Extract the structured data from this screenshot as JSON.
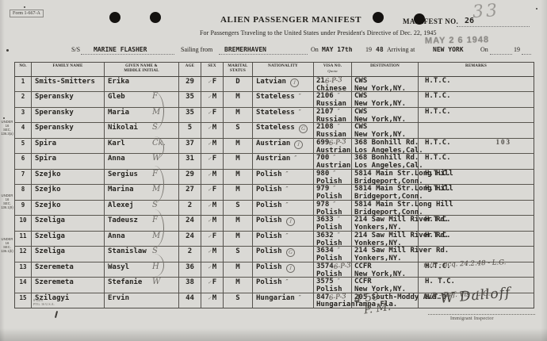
{
  "form": {
    "form_no": "Form 1-667-A",
    "title": "ALIEN PASSENGER MANIFEST",
    "subtitle": "For Passengers Traveling to the United States under President's Directive of Dec. 22, 1945",
    "manifest_no_label": "MANIFEST NO.",
    "manifest_no": "26",
    "pencil_page_no": "33",
    "date_stamp": "MAY 2 6 1948",
    "ss_label": "S/S",
    "ship_name": "MARINE FLASHER",
    "sailing_from_label": "Sailing from",
    "port_of_sailing": "BREMERHAVEN",
    "on_label": "On",
    "sailing_date": "MAY 17th",
    "year_prefix": "19",
    "sailing_year": "48",
    "arriving_label": "Arriving at",
    "arrival_port": "NEW YORK",
    "on2_label": "On",
    "year2_prefix": "19"
  },
  "table": {
    "headers": [
      "NO.",
      "FAMILY NAME",
      "GIVEN NAME &\nMIDDLE INITIAL",
      "AGE",
      "SEX",
      "MARITAL\nSTATUS",
      "NATIONALITY",
      "VISA NO.",
      "DESTINATION",
      "REMARKS"
    ],
    "visa_quota_sub": "Quota",
    "rows": [
      {
        "no": "1",
        "family": "Smits-Smitters",
        "given": "Erika",
        "hw": "",
        "age": "29",
        "sex": "F",
        "marital": "D",
        "nat": "Latvian",
        "nat_circle": "1",
        "nat_ditto": "",
        "visa": "21",
        "visa_hw": "6-P-3",
        "quota": "Chinese",
        "dest1": "CWS",
        "dest2": "New York,NY.",
        "rmk_hw": "",
        "rmk": "H.T.C.",
        "stamp": ""
      },
      {
        "no": "2",
        "family": "Speransky",
        "given": "Gleb",
        "hw": "F",
        "age": "35",
        "sex": "M",
        "marital": "M",
        "nat": "Stateless",
        "nat_circle": "",
        "nat_ditto": "″",
        "visa": "2106",
        "visa_hw": "″",
        "quota": "Russian",
        "dest1": "CWS",
        "dest2": "New York,NY.",
        "rmk_hw": "",
        "rmk": "H.T.C.",
        "stamp": ""
      },
      {
        "no": "3",
        "family": "Speransky",
        "given": "Maria",
        "hw": "M",
        "age": "35",
        "sex": "F",
        "marital": "M",
        "nat": "Stateless",
        "nat_circle": "",
        "nat_ditto": "″",
        "visa": "2107",
        "visa_hw": "″",
        "quota": "Russian",
        "dest1": "CWS",
        "dest2": "New York,NY.",
        "rmk_hw": "",
        "rmk": "H.T.C.",
        "stamp": ""
      },
      {
        "no": "4",
        "family": "Speransky",
        "given": "Nikolai",
        "hw": "S",
        "age": "5",
        "sex": "M",
        "marital": "S",
        "nat": "Stateless",
        "nat_circle": "G",
        "nat_ditto": "",
        "visa": "2108",
        "visa_hw": "″",
        "quota": "Russian",
        "dest1": "CWS",
        "dest2": "New York,NY.",
        "rmk_hw": "",
        "rmk": "",
        "stamp": ""
      },
      {
        "no": "5",
        "family": "Spira",
        "given": "Karl",
        "hw": "Ck.",
        "age": "37",
        "sex": "M",
        "marital": "M",
        "nat": "Austrian",
        "nat_circle": "1",
        "nat_ditto": "",
        "visa": "699",
        "visa_hw": "6-P-3",
        "quota": "Austrian",
        "dest1": "368 Bonhill Rd.",
        "dest2": "Los Angeles,Cal.",
        "rmk_hw": "",
        "rmk": "H.T.C.",
        "stamp": "103"
      },
      {
        "no": "6",
        "family": "Spira",
        "given": "Anna",
        "hw": "W",
        "age": "31",
        "sex": "F",
        "marital": "M",
        "nat": "Austrian",
        "nat_circle": "",
        "nat_ditto": "″",
        "visa": "700",
        "visa_hw": "″",
        "quota": "Austrian",
        "dest1": "368 Bonhill Rd.",
        "dest2": "Los Angeles,Cal.",
        "rmk_hw": "",
        "rmk": "H.T.C.",
        "stamp": ""
      },
      {
        "no": "7",
        "family": "Szejko",
        "given": "Sergius",
        "hw": "F",
        "age": "29",
        "sex": "M",
        "marital": "M",
        "nat": "Polish",
        "nat_circle": "",
        "nat_ditto": "″",
        "visa": "980",
        "visa_hw": "″",
        "quota": "Polish",
        "dest1": "5814 Main Str.Long Hill",
        "dest2": "Bridgeport,Conn.",
        "rmk_hw": "",
        "rmk": "H.T.C.",
        "stamp": ""
      },
      {
        "no": "8",
        "family": "Szejko",
        "given": "Marina",
        "hw": "M",
        "age": "27",
        "sex": "F",
        "marital": "M",
        "nat": "Polish",
        "nat_circle": "",
        "nat_ditto": "″",
        "visa": "979",
        "visa_hw": "″",
        "quota": "Polish",
        "dest1": "5814 Main Str.Long Hill",
        "dest2": "Bridgeport,Conn.",
        "rmk_hw": "",
        "rmk": "H.T.C.",
        "stamp": ""
      },
      {
        "no": "9",
        "family": "Szejko",
        "given": "Alexej",
        "hw": "S",
        "age": "2",
        "sex": "M",
        "marital": "S",
        "nat": "Polish",
        "nat_circle": "",
        "nat_ditto": "″",
        "visa": "978",
        "visa_hw": "″",
        "quota": "Polish",
        "dest1": "5814 Main Str.Long Hill",
        "dest2": "Bridgeport,Conn.",
        "rmk_hw": "",
        "rmk": "",
        "stamp": ""
      },
      {
        "no": "10",
        "family": "Szeliga",
        "given": "Tadeusz",
        "hw": "F",
        "age": "24",
        "sex": "M",
        "marital": "M",
        "nat": "Polish",
        "nat_circle": "1",
        "nat_ditto": "",
        "visa": "3633",
        "visa_hw": "″",
        "quota": "Polish",
        "dest1": "214 Saw Mill River Rd.",
        "dest2": "Yonkers,NY.",
        "rmk_hw": "",
        "rmk": "H.T.C.",
        "stamp": ""
      },
      {
        "no": "11",
        "family": "Szeliga",
        "given": "Anna",
        "hw": "M",
        "age": "24",
        "sex": "F",
        "marital": "M",
        "nat": "Polish",
        "nat_circle": "",
        "nat_ditto": "″",
        "visa": "3632",
        "visa_hw": "″",
        "quota": "Polish",
        "dest1": "214 Saw Mill River Rd.",
        "dest2": "Yonkers,NY.",
        "rmk_hw": "",
        "rmk": "H.T.C.",
        "stamp": ""
      },
      {
        "no": "12",
        "family": "Szeliga",
        "given": "Stanislaw",
        "hw": "S",
        "age": "2",
        "sex": "M",
        "marital": "S",
        "nat": "Polish",
        "nat_circle": "G",
        "nat_ditto": "",
        "visa": "3634",
        "visa_hw": "″",
        "quota": "Polish",
        "dest1": "214 Saw Mill River Rd.",
        "dest2": "Yonkers,NY.",
        "rmk_hw": "",
        "rmk": "",
        "stamp": ""
      },
      {
        "no": "13",
        "family": "Szeremeta",
        "given": "Wasyl",
        "hw": "H",
        "age": "36",
        "sex": "M",
        "marital": "M",
        "nat": "Polish",
        "nat_circle": "1",
        "nat_ditto": "",
        "visa": "3574",
        "visa_hw": "6-P-3",
        "quota": "Polish",
        "dest1": "CCFR",
        "dest2": "New York,NY.",
        "rmk_hw": "m/B - acq. 24.2.48 - L.G.",
        "rmk": "H.T.C.",
        "stamp": ""
      },
      {
        "no": "14",
        "family": "Szeremeta",
        "given": "Stefanie",
        "hw": "W",
        "age": "38",
        "sex": "F",
        "marital": "M",
        "nat": "Polish",
        "nat_circle": "",
        "nat_ditto": "″",
        "visa": "3575",
        "visa_hw": "″",
        "quota": "Polish",
        "dest1": "CCFR",
        "dest2": "New York,NY.",
        "rmk_hw": "",
        "rmk": "H. T.C.",
        "stamp": ""
      },
      {
        "no": "15",
        "family": "Szilagyi",
        "given": "Ervin",
        "hw": "",
        "age": "44",
        "sex": "M",
        "marital": "S",
        "nat": "Hungarian",
        "nat_circle": "",
        "nat_ditto": "″",
        "visa": "847",
        "visa_hw": "6-P-3",
        "quota": "Hungarian",
        "dest1": "205 South-Moddy Ave.",
        "dest2": "Tampa,Fla.",
        "rmk_hw": "m/B - Def. Vis - L.G.",
        "rmk": "H.T.O.",
        "stamp": ""
      }
    ],
    "sex_check_mark": "✓",
    "family_braces": [
      {
        "from": 2,
        "to": 4
      },
      {
        "from": 5,
        "to": 6
      },
      {
        "from": 7,
        "to": 9
      },
      {
        "from": 10,
        "to": 12
      },
      {
        "from": 13,
        "to": 14
      }
    ]
  },
  "margin_notes": [
    {
      "row": 4,
      "line1": "UNDER 16",
      "line2": "SEC. 136.3(a)"
    },
    {
      "row": 9,
      "line1": "UNDER 16",
      "line2": "SEC. 136.1(9)"
    },
    {
      "row": 12,
      "line1": "UNDER 16",
      "line2": "SEC. 136.1(b)"
    }
  ],
  "footer": {
    "print_code": "8-4416\nPTG. 16 U.S.A.",
    "time_hw_line1": "4 50",
    "time_hw_line2": "P. M.",
    "signature": "W Dalloff",
    "inspector_label": "Immigrant Inspector"
  }
}
